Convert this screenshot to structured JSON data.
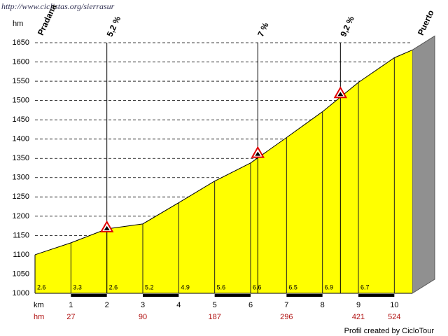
{
  "chart_data": {
    "type": "area",
    "source_url": "http://www.ciclistas.org/sierrasur",
    "credit": "Profil created by CicloTour",
    "y_label": "hm",
    "x_label": "km",
    "climb_label": "hm",
    "start_label": "Pradana",
    "end_label": "Puerto",
    "x": [
      0,
      1,
      2,
      3,
      4,
      5,
      6,
      7,
      8,
      9,
      10,
      10.5
    ],
    "values": [
      1100,
      1131,
      1167,
      1180,
      1235,
      1291,
      1338,
      1404,
      1471,
      1547,
      1611,
      1631
    ],
    "color": "#ffff00",
    "segment_labels": [
      2.6,
      3.3,
      2.6,
      5.2,
      4.9,
      5.6,
      6.6,
      6.5,
      6.9,
      6.7
    ],
    "climb": {
      "x": [
        1,
        3,
        5,
        7,
        9,
        10
      ],
      "values": [
        27,
        90,
        187,
        296,
        421,
        524
      ]
    },
    "annotations": [
      {
        "text": "5,2 %",
        "x": 2,
        "y": 1169
      },
      {
        "text": "7 %",
        "x": 6.2,
        "y": 1362
      },
      {
        "text": "9,2 %",
        "x": 8.5,
        "y": 1517
      }
    ],
    "xlim": [
      0,
      10.5
    ],
    "xticks": [
      1,
      2,
      3,
      4,
      5,
      6,
      7,
      8,
      9,
      10
    ],
    "ylim": [
      1000,
      1650
    ],
    "yticks": [
      1000,
      1050,
      1100,
      1150,
      1200,
      1250,
      1300,
      1350,
      1400,
      1450,
      1500,
      1550,
      1600,
      1650
    ],
    "grid": true
  }
}
